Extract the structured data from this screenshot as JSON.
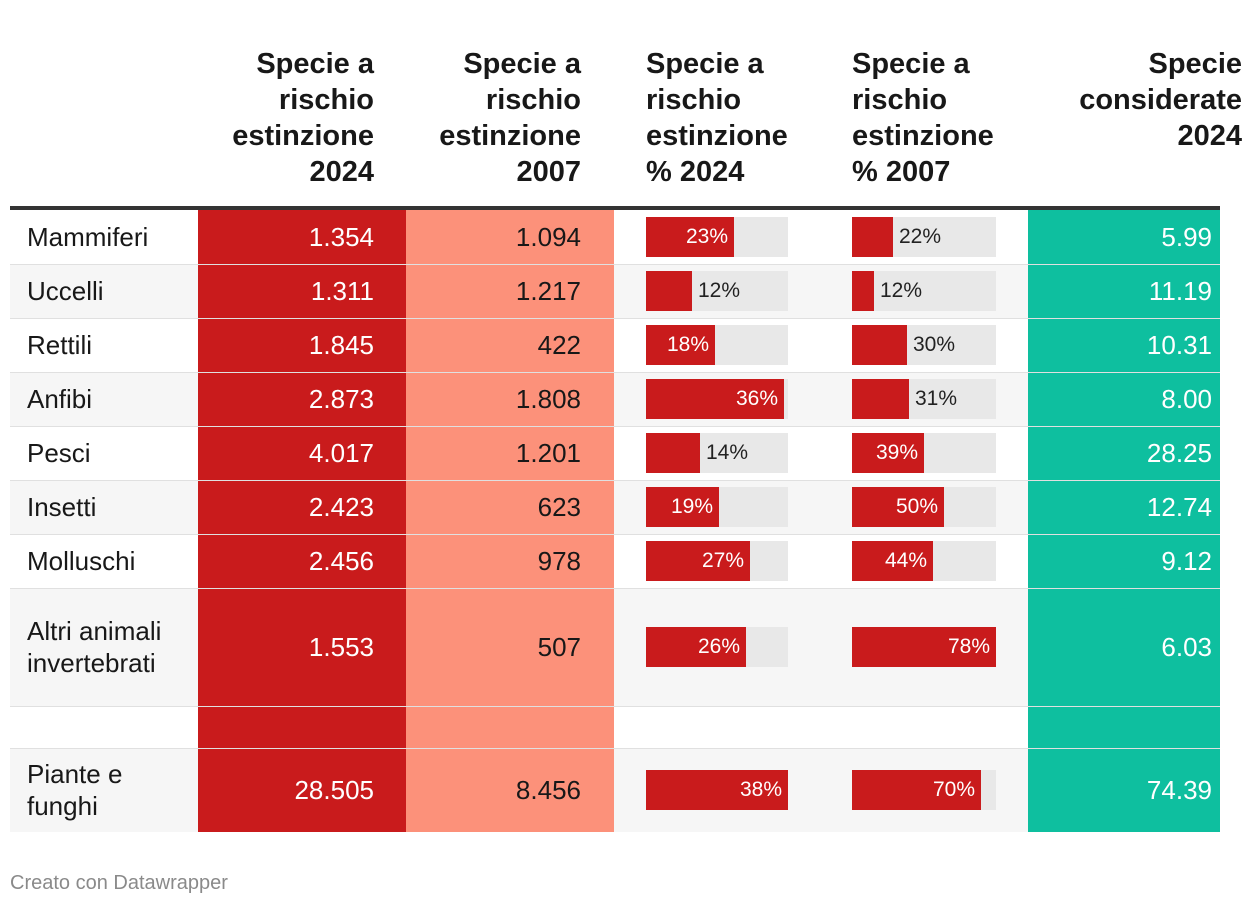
{
  "chart_data": {
    "type": "table",
    "columns": [
      {
        "key": "label",
        "title": ""
      },
      {
        "key": "r2024",
        "title": "Specie a rischio estinzione 2024"
      },
      {
        "key": "r2007",
        "title": "Specie a rischio estinzione 2007"
      },
      {
        "key": "p2024",
        "title": "Specie a rischio estinzione % 2024"
      },
      {
        "key": "p2007",
        "title": "Specie a rischio estinzione % 2007"
      },
      {
        "key": "c2024",
        "title": "Specie considerate 2024"
      }
    ],
    "rows": [
      {
        "label": "Mammiferi",
        "r2024": "1.354",
        "r2007": "1.094",
        "p2024": 23,
        "p2007": 22,
        "c2024": "5.99"
      },
      {
        "label": "Uccelli",
        "r2024": "1.311",
        "r2007": "1.217",
        "p2024": 12,
        "p2007": 12,
        "c2024": "11.19"
      },
      {
        "label": "Rettili",
        "r2024": "1.845",
        "r2007": "422",
        "p2024": 18,
        "p2007": 30,
        "c2024": "10.31"
      },
      {
        "label": "Anfibi",
        "r2024": "2.873",
        "r2007": "1.808",
        "p2024": 36,
        "p2007": 31,
        "c2024": "8.00"
      },
      {
        "label": "Pesci",
        "r2024": "4.017",
        "r2007": "1.201",
        "p2024": 14,
        "p2007": 39,
        "c2024": "28.25"
      },
      {
        "label": "Insetti",
        "r2024": "2.423",
        "r2007": "623",
        "p2024": 19,
        "p2007": 50,
        "c2024": "12.74"
      },
      {
        "label": "Molluschi",
        "r2024": "2.456",
        "r2007": "978",
        "p2024": 27,
        "p2007": 44,
        "c2024": "9.12"
      },
      {
        "label": "Altri animali invertebrati",
        "r2024": "1.553",
        "r2007": "507",
        "p2024": 26,
        "p2007": 78,
        "c2024": "6.03"
      },
      {
        "label": "",
        "r2024": "",
        "r2007": "",
        "p2024": null,
        "p2007": null,
        "c2024": ""
      },
      {
        "label": "Piante e funghi",
        "r2024": "28.505",
        "r2007": "8.456",
        "p2024": 38,
        "p2007": 70,
        "c2024": "74.39"
      }
    ],
    "bar_scale_max_pct": 37
  },
  "footer": {
    "credit": "Creato con Datawrapper"
  },
  "colors": {
    "r2024_bg": "#c91b1c",
    "r2007_bg": "#fc917a",
    "c2024_bg": "#0ebf9f",
    "bar": "#c91b1c",
    "track": "#e8e8e8"
  }
}
